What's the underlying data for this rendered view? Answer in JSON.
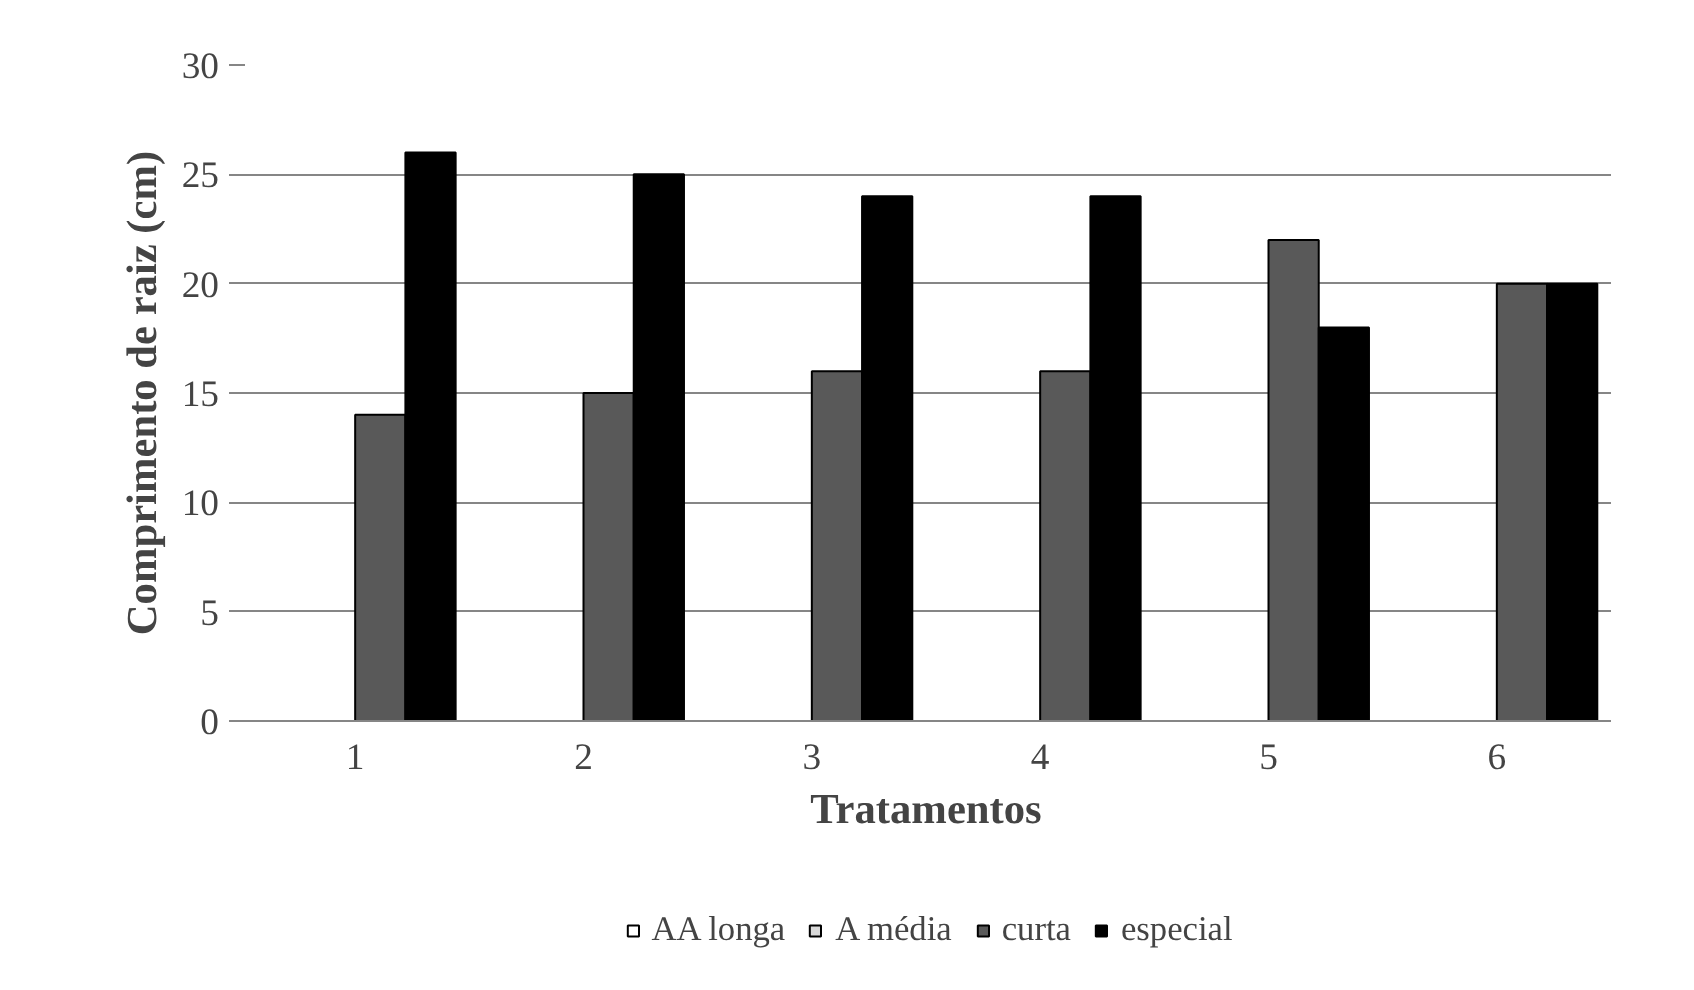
{
  "chart_data": {
    "type": "bar",
    "xlabel": "Tratamentos",
    "ylabel": "Comprimento de raiz (cm)",
    "categories": [
      "1",
      "2",
      "3",
      "4",
      "5",
      "6"
    ],
    "series": [
      {
        "name": "AA longa",
        "color": "#ffffff",
        "values": [
          null,
          null,
          null,
          null,
          null,
          null
        ]
      },
      {
        "name": "A média",
        "color": "#d9d9d9",
        "values": [
          null,
          null,
          null,
          null,
          null,
          null
        ]
      },
      {
        "name": "curta",
        "color": "#595959",
        "values": [
          14,
          15,
          16,
          16,
          22,
          20
        ]
      },
      {
        "name": "especial",
        "color": "#000000",
        "values": [
          26,
          25,
          24,
          24,
          18,
          20
        ]
      }
    ],
    "ylim": [
      0,
      30
    ],
    "yticks": [
      0,
      5,
      10,
      15,
      20,
      25,
      30
    ],
    "grid": "y",
    "legend": "bottom"
  }
}
